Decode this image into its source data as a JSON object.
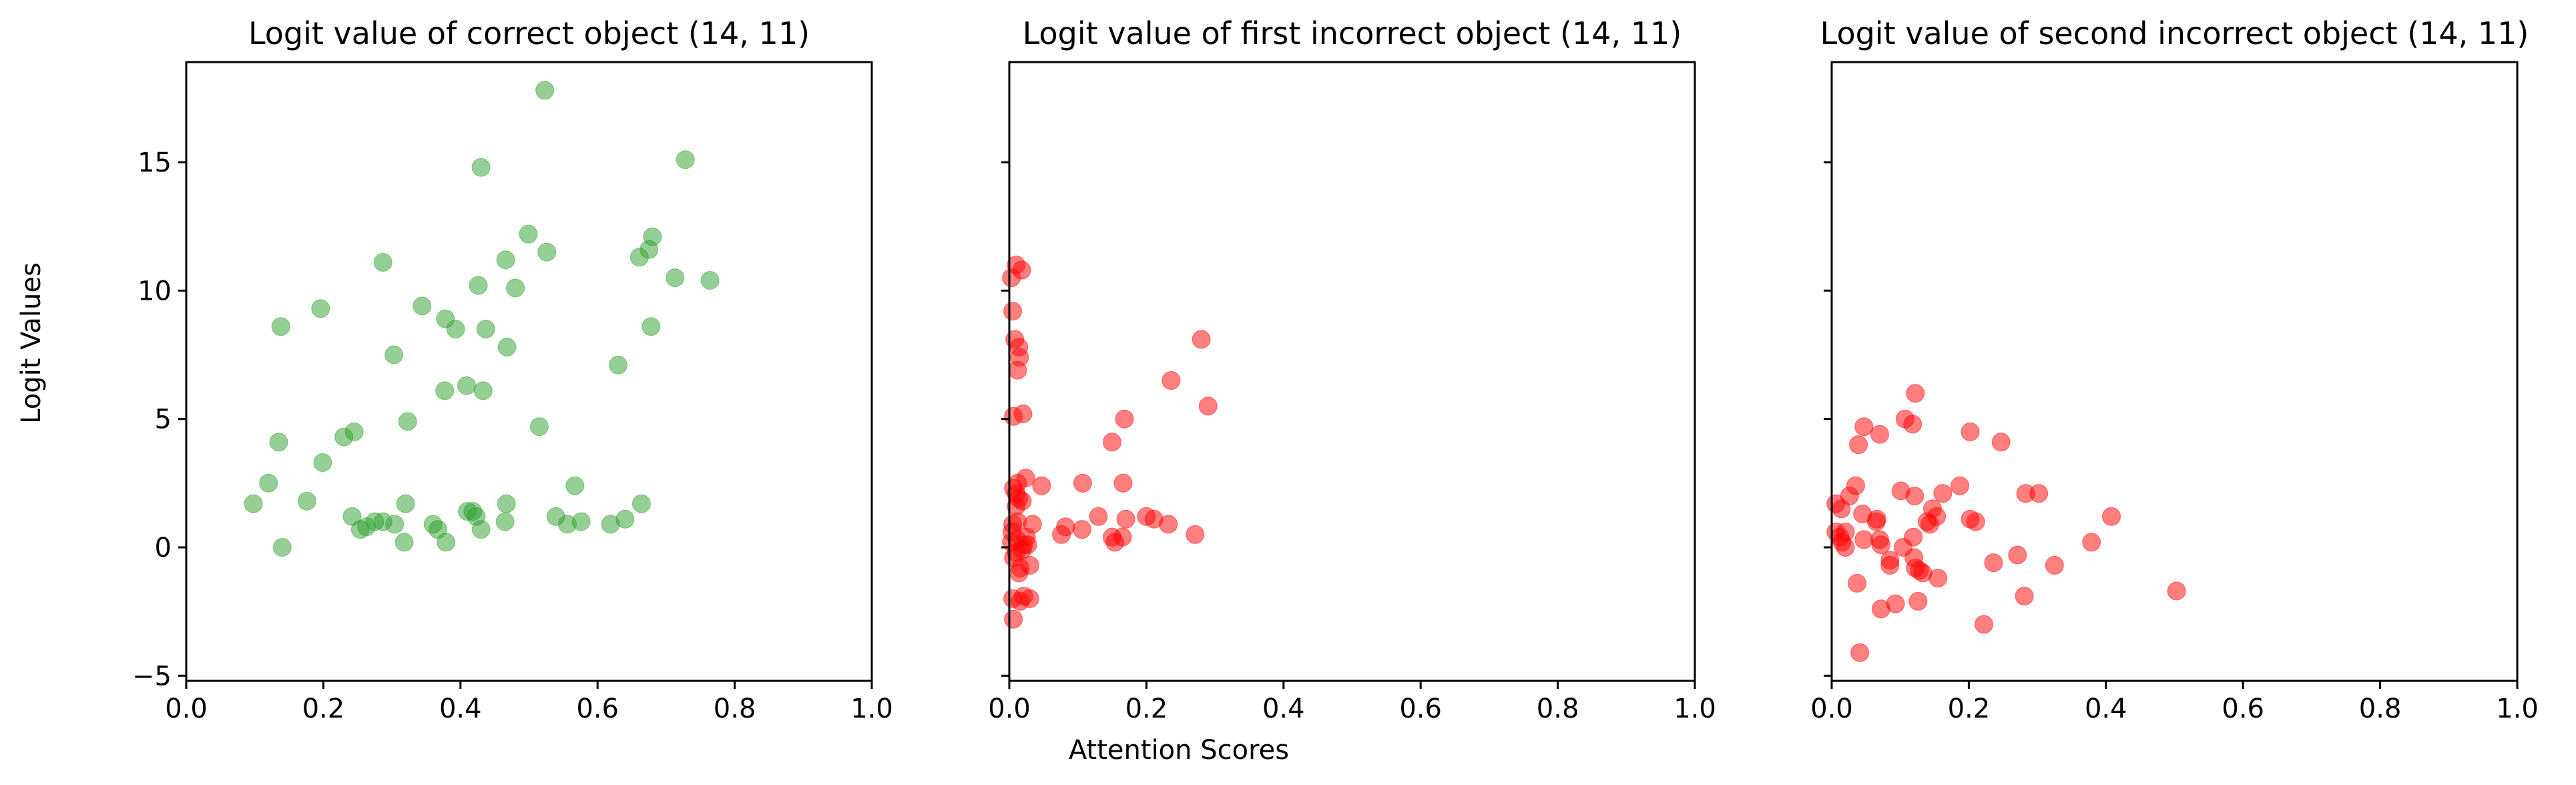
{
  "figure": {
    "ylabel": "Logit Values",
    "xlabel": "Attention Scores"
  },
  "chart_data": [
    {
      "type": "scatter",
      "title": "Logit value of correct object (14, 11)",
      "xlim": [
        0.0,
        1.0
      ],
      "ylim": [
        -5.2,
        18.9
      ],
      "xticks": [
        "0.0",
        "0.2",
        "0.4",
        "0.6",
        "0.8",
        "1.0"
      ],
      "yticks": [
        "−5",
        "0",
        "5",
        "10",
        "15"
      ],
      "show_yticklabels": true,
      "color": "#2ca02c",
      "x": [
        0.523,
        0.728,
        0.43,
        0.499,
        0.526,
        0.68,
        0.466,
        0.287,
        0.661,
        0.675,
        0.713,
        0.764,
        0.48,
        0.426,
        0.344,
        0.138,
        0.196,
        0.378,
        0.393,
        0.437,
        0.678,
        0.468,
        0.303,
        0.63,
        0.377,
        0.409,
        0.433,
        0.323,
        0.515,
        0.23,
        0.245,
        0.135,
        0.199,
        0.12,
        0.567,
        0.176,
        0.098,
        0.32,
        0.418,
        0.467,
        0.664,
        0.41,
        0.423,
        0.242,
        0.539,
        0.64,
        0.576,
        0.619,
        0.275,
        0.287,
        0.36,
        0.465,
        0.304,
        0.556,
        0.263,
        0.367,
        0.43,
        0.254,
        0.379,
        0.318,
        0.14
      ],
      "y": [
        17.8,
        15.1,
        14.8,
        12.2,
        11.5,
        12.1,
        11.2,
        11.1,
        11.3,
        11.6,
        10.5,
        10.4,
        10.1,
        10.2,
        9.4,
        8.6,
        9.3,
        8.9,
        8.5,
        8.5,
        8.6,
        7.8,
        7.5,
        7.1,
        6.1,
        6.3,
        6.1,
        4.9,
        4.7,
        4.3,
        4.5,
        4.1,
        3.3,
        2.5,
        2.4,
        1.8,
        1.7,
        1.7,
        1.4,
        1.7,
        1.7,
        1.4,
        1.2,
        1.2,
        1.2,
        1.1,
        1.0,
        0.9,
        1.0,
        1.0,
        0.9,
        1.0,
        0.9,
        0.9,
        0.8,
        0.7,
        0.7,
        0.7,
        0.2,
        0.2,
        0.0
      ]
    },
    {
      "type": "scatter",
      "title": "Logit value of first incorrect object (14, 11)",
      "xlim": [
        0.0,
        1.0
      ],
      "ylim": [
        -5.2,
        18.9
      ],
      "xticks": [
        "0.0",
        "0.2",
        "0.4",
        "0.6",
        "0.8",
        "1.0"
      ],
      "yticks": [
        "−5",
        "0",
        "5",
        "10",
        "15"
      ],
      "show_yticklabels": false,
      "color": "#ff0000",
      "x": [
        0.01,
        0.018,
        0.003,
        0.005,
        0.008,
        0.014,
        0.015,
        0.012,
        0.28,
        0.236,
        0.29,
        0.02,
        0.006,
        0.168,
        0.15,
        0.024,
        0.012,
        0.047,
        0.006,
        0.01,
        0.107,
        0.166,
        0.014,
        0.019,
        0.01,
        0.13,
        0.2,
        0.211,
        0.17,
        0.012,
        0.232,
        0.005,
        0.034,
        0.106,
        0.082,
        0.004,
        0.076,
        0.271,
        0.025,
        0.165,
        0.15,
        0.011,
        0.003,
        0.027,
        0.021,
        0.154,
        0.019,
        0.01,
        0.006,
        0.03,
        0.016,
        0.014,
        0.021,
        0.005,
        0.016,
        0.03,
        0.006
      ],
      "y": [
        11.0,
        10.8,
        10.5,
        9.2,
        8.1,
        7.8,
        7.4,
        6.9,
        8.1,
        6.5,
        5.5,
        5.2,
        5.1,
        5.0,
        4.1,
        2.7,
        2.5,
        2.4,
        2.3,
        2.1,
        2.5,
        2.5,
        1.9,
        1.8,
        1.6,
        1.2,
        1.2,
        1.1,
        1.1,
        1.0,
        0.9,
        0.9,
        0.9,
        0.7,
        0.8,
        0.6,
        0.5,
        0.5,
        0.4,
        0.4,
        0.4,
        0.3,
        0.2,
        0.1,
        0.1,
        0.2,
        -0.1,
        -0.2,
        -0.4,
        -0.7,
        -0.8,
        -1.0,
        -1.9,
        -2.0,
        -2.1,
        -2.0,
        -2.8
      ]
    },
    {
      "type": "scatter",
      "title": "Logit value of second incorrect object (14, 11)",
      "xlim": [
        0.0,
        1.0
      ],
      "ylim": [
        -5.2,
        18.9
      ],
      "xticks": [
        "0.0",
        "0.2",
        "0.4",
        "0.6",
        "0.8",
        "1.0"
      ],
      "yticks": [
        "−5",
        "0",
        "5",
        "10",
        "15"
      ],
      "show_yticklabels": false,
      "color": "#ff0000",
      "x": [
        0.122,
        0.107,
        0.118,
        0.047,
        0.202,
        0.07,
        0.039,
        0.247,
        0.187,
        0.035,
        0.101,
        0.121,
        0.162,
        0.283,
        0.302,
        0.026,
        0.006,
        0.014,
        0.147,
        0.153,
        0.408,
        0.202,
        0.045,
        0.21,
        0.065,
        0.066,
        0.139,
        0.143,
        0.006,
        0.012,
        0.02,
        0.015,
        0.07,
        0.119,
        0.379,
        0.047,
        0.104,
        0.02,
        0.072,
        0.271,
        0.12,
        0.085,
        0.236,
        0.325,
        0.122,
        0.085,
        0.128,
        0.133,
        0.155,
        0.037,
        0.503,
        0.281,
        0.093,
        0.126,
        0.072,
        0.222,
        0.041
      ],
      "y": [
        6.0,
        5.0,
        4.8,
        4.7,
        4.5,
        4.4,
        4.0,
        4.1,
        2.4,
        2.4,
        2.2,
        2.0,
        2.1,
        2.1,
        2.1,
        2.0,
        1.7,
        1.5,
        1.5,
        1.2,
        1.2,
        1.1,
        1.3,
        1.0,
        1.0,
        1.1,
        1.0,
        0.9,
        0.6,
        0.4,
        0.6,
        0.2,
        0.3,
        0.4,
        0.2,
        0.3,
        0.0,
        0.0,
        0.1,
        -0.3,
        -0.4,
        -0.5,
        -0.6,
        -0.7,
        -0.8,
        -0.7,
        -0.9,
        -1.0,
        -1.2,
        -1.4,
        -1.7,
        -1.9,
        -2.2,
        -2.1,
        -2.4,
        -3.0,
        -4.1
      ]
    }
  ]
}
